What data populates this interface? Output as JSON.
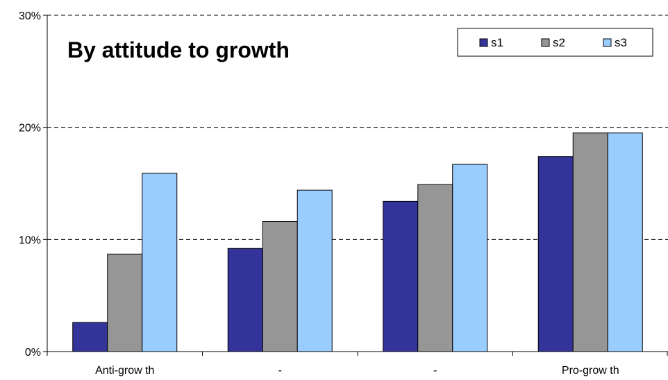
{
  "chart_data": {
    "type": "bar",
    "title": "By attitude to growth",
    "xlabel": "",
    "ylabel": "",
    "categories": [
      "Anti-grow th",
      "-",
      "-",
      "Pro-grow th"
    ],
    "series": [
      {
        "name": "s1",
        "color": "#333399",
        "values": [
          2.6,
          9.2,
          13.4,
          17.4
        ]
      },
      {
        "name": "s2",
        "color": "#969696",
        "values": [
          8.7,
          11.6,
          14.9,
          19.5
        ]
      },
      {
        "name": "s3",
        "color": "#99CCFF",
        "values": [
          15.9,
          14.4,
          16.7,
          19.5
        ]
      }
    ],
    "ylim": [
      0,
      30
    ],
    "yticks": [
      0,
      10,
      20,
      30
    ],
    "ytick_labels": [
      "0%",
      "10%",
      "20%",
      "30%"
    ],
    "grid": "horizontal dashed",
    "legend_position": "top-right"
  }
}
